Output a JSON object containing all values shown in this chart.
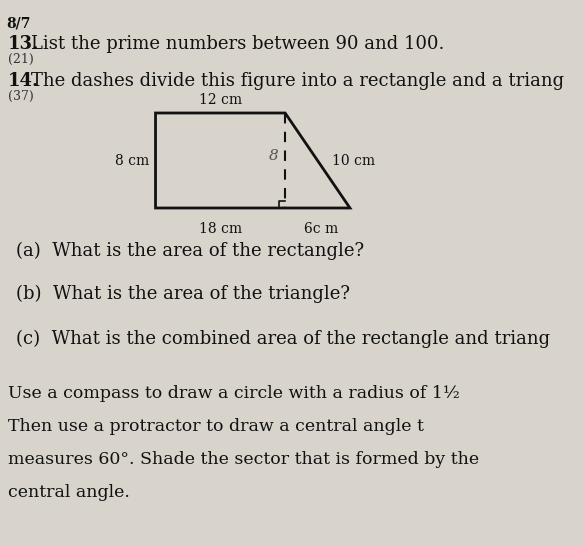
{
  "background_color": "#d8d4cc",
  "page_label": "8/7",
  "q13_number": "13.",
  "q13_points": "(21)",
  "q13_text": "List the prime numbers between 90 and 100.",
  "q14_number": "14.",
  "q14_points": "(37)",
  "q14_text": "The dashes divide this figure into a rectangle and a triang",
  "fig_label_top": "12 cm",
  "fig_label_left": "8 cm",
  "fig_label_slant": "10 cm",
  "fig_label_bottom1": "18 cm",
  "fig_label_bottom2": "6c m",
  "qa_text": "(a)  What is the area of the rectangle?",
  "qb_text": "(b)  What is the area of the triangle?",
  "qc_text": "(c)  What is the combined area of the rectangle and triang",
  "q15_text_line1": "Use a compass to draw a circle with a radius of 1½",
  "q15_text_line2": "Then use a protractor to draw a central angle t",
  "q15_text_line3": "measures 60°. Shade the sector that is formed by the",
  "q15_text_line4": "central angle.",
  "shape_color": "#000000",
  "dashes_color": "#000000"
}
